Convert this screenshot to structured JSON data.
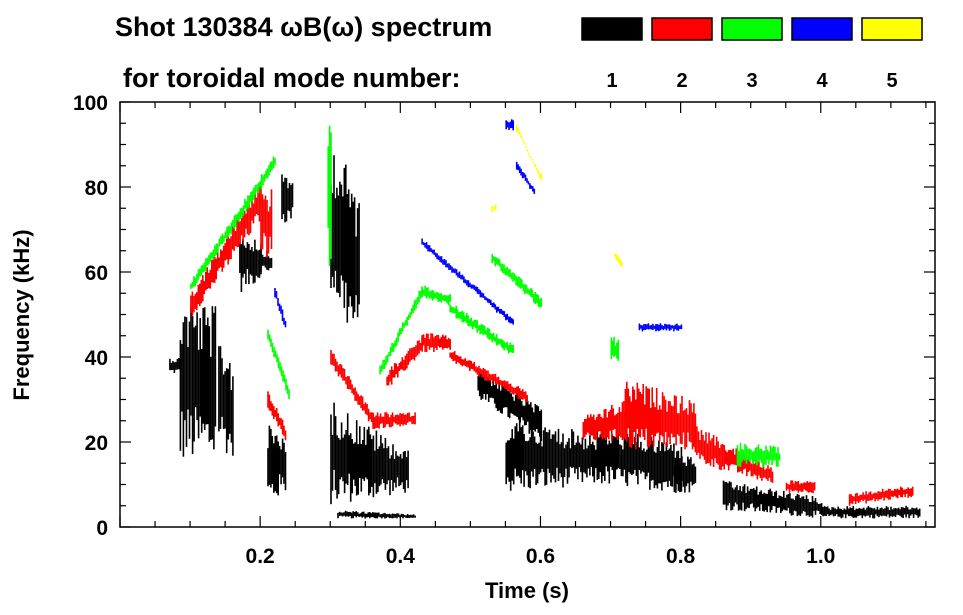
{
  "chart_data": {
    "type": "heatmap",
    "title": "Shot 130384 ωB(ω) spectrum",
    "legend_title": "for toroidal mode number:",
    "legend_placement": "top-right",
    "xlabel": "Time (s)",
    "ylabel": "Frequency (kHz)",
    "xlim": [
      0,
      1.163
    ],
    "ylim": [
      0,
      100
    ],
    "xticks": [
      0.2,
      0.4,
      0.6,
      0.8,
      1.0
    ],
    "xtick_labels": [
      "0.2",
      "0.4",
      "0.6",
      "0.8",
      "1.0"
    ],
    "yticks": [
      0,
      20,
      40,
      60,
      80,
      100
    ],
    "ytick_labels": [
      "0",
      "20",
      "40",
      "60",
      "80",
      "100"
    ],
    "grid": false,
    "modes": [
      {
        "n": "1",
        "color": "#000000",
        "regions": [
          {
            "t": [
              0.07,
              0.085
            ],
            "f0": [
              36,
              40
            ],
            "f1": [
              36,
              40
            ]
          },
          {
            "t": [
              0.085,
              0.135
            ],
            "f0": [
              15,
              55
            ],
            "f1": [
              15,
              52
            ]
          },
          {
            "t": [
              0.14,
              0.16
            ],
            "f0": [
              20,
              45
            ],
            "f1": [
              15,
              40
            ]
          },
          {
            "t": [
              0.17,
              0.2
            ],
            "f0": [
              55,
              70
            ],
            "f1": [
              58,
              68
            ]
          },
          {
            "t": [
              0.2,
              0.215
            ],
            "f0": [
              60,
              66
            ],
            "f1": [
              60,
              64
            ]
          },
          {
            "t": [
              0.21,
              0.235
            ],
            "f0": [
              5,
              25
            ],
            "f1": [
              8,
              22
            ]
          },
          {
            "t": [
              0.23,
              0.245
            ],
            "f0": [
              71,
              83
            ],
            "f1": [
              72,
              82
            ]
          },
          {
            "t": [
              0.3,
              0.34
            ],
            "f0": [
              55,
              92
            ],
            "f1": [
              40,
              80
            ]
          },
          {
            "t": [
              0.3,
              0.41
            ],
            "f0": [
              5,
              30
            ],
            "f1": [
              8,
              18
            ]
          },
          {
            "t": [
              0.31,
              0.42
            ],
            "f0": [
              2,
              4
            ],
            "f1": [
              2,
              3
            ]
          },
          {
            "t": [
              0.51,
              0.6
            ],
            "f0": [
              30,
              38
            ],
            "f1": [
              20,
              28
            ]
          },
          {
            "t": [
              0.55,
              0.68
            ],
            "f0": [
              8,
              26
            ],
            "f1": [
              10,
              22
            ]
          },
          {
            "t": [
              0.68,
              0.8
            ],
            "f0": [
              10,
              24
            ],
            "f1": [
              8,
              20
            ]
          },
          {
            "t": [
              0.79,
              0.82
            ],
            "f0": [
              8,
              17
            ],
            "f1": [
              8,
              17
            ]
          },
          {
            "t": [
              0.86,
              1.0
            ],
            "f0": [
              4,
              11
            ],
            "f1": [
              2,
              7
            ]
          },
          {
            "t": [
              1.0,
              1.14
            ],
            "f0": [
              2,
              5
            ],
            "f1": [
              2,
              5
            ]
          }
        ]
      },
      {
        "n": "2",
        "color": "#ff0000",
        "regions": [
          {
            "t": [
              0.1,
              0.2
            ],
            "f0": [
              49,
              55
            ],
            "f1": [
              72,
              82
            ]
          },
          {
            "t": [
              0.2,
              0.215
            ],
            "f0": [
              65,
              80
            ],
            "f1": [
              62,
              80
            ]
          },
          {
            "t": [
              0.21,
              0.235
            ],
            "f0": [
              28,
              32
            ],
            "f1": [
              20,
              24
            ]
          },
          {
            "t": [
              0.3,
              0.36
            ],
            "f0": [
              38,
              42
            ],
            "f1": [
              23,
              27
            ]
          },
          {
            "t": [
              0.36,
              0.42
            ],
            "f0": [
              23,
              27
            ],
            "f1": [
              24,
              27
            ]
          },
          {
            "t": [
              0.38,
              0.43
            ],
            "f0": [
              32,
              37
            ],
            "f1": [
              41,
              45
            ]
          },
          {
            "t": [
              0.43,
              0.47
            ],
            "f0": [
              41,
              46
            ],
            "f1": [
              41,
              45
            ]
          },
          {
            "t": [
              0.47,
              0.58
            ],
            "f0": [
              39,
              42
            ],
            "f1": [
              29,
              32
            ]
          },
          {
            "t": [
              0.66,
              0.72
            ],
            "f0": [
              20,
              26
            ],
            "f1": [
              20,
              30
            ]
          },
          {
            "t": [
              0.72,
              0.82
            ],
            "f0": [
              18,
              35
            ],
            "f1": [
              18,
              30
            ]
          },
          {
            "t": [
              0.82,
              0.93
            ],
            "f0": [
              15,
              24
            ],
            "f1": [
              10,
              14
            ]
          },
          {
            "t": [
              0.95,
              0.99
            ],
            "f0": [
              8,
              11
            ],
            "f1": [
              8,
              11
            ]
          },
          {
            "t": [
              1.04,
              1.13
            ],
            "f0": [
              5,
              8
            ],
            "f1": [
              7,
              10
            ]
          }
        ]
      },
      {
        "n": "3",
        "color": "#00ff00",
        "regions": [
          {
            "t": [
              0.1,
              0.22
            ],
            "f0": [
              55,
              58
            ],
            "f1": [
              84,
              88
            ]
          },
          {
            "t": [
              0.21,
              0.24
            ],
            "f0": [
              44,
              47
            ],
            "f1": [
              30,
              33
            ]
          },
          {
            "t": [
              0.296,
              0.3
            ],
            "f0": [
              60,
              96
            ],
            "f1": [
              60,
              96
            ]
          },
          {
            "t": [
              0.37,
              0.43
            ],
            "f0": [
              35,
              38
            ],
            "f1": [
              54,
              57
            ]
          },
          {
            "t": [
              0.43,
              0.47
            ],
            "f0": [
              54,
              57
            ],
            "f1": [
              52,
              55
            ]
          },
          {
            "t": [
              0.47,
              0.56
            ],
            "f0": [
              50,
              53
            ],
            "f1": [
              40,
              43
            ]
          },
          {
            "t": [
              0.53,
              0.6
            ],
            "f0": [
              62,
              65
            ],
            "f1": [
              51,
              54
            ]
          },
          {
            "t": [
              0.7,
              0.71
            ],
            "f0": [
              38,
              45
            ],
            "f1": [
              38,
              45
            ]
          },
          {
            "t": [
              0.88,
              0.94
            ],
            "f0": [
              14,
              20
            ],
            "f1": [
              14,
              19
            ]
          }
        ]
      },
      {
        "n": "4",
        "color": "#0000ff",
        "regions": [
          {
            "t": [
              0.22,
              0.235
            ],
            "f0": [
              54,
              57
            ],
            "f1": [
              46,
              49
            ]
          },
          {
            "t": [
              0.43,
              0.56
            ],
            "f0": [
              66,
              68
            ],
            "f1": [
              47,
              49
            ]
          },
          {
            "t": [
              0.55,
              0.56
            ],
            "f0": [
              93,
              96
            ],
            "f1": [
              93,
              96
            ]
          },
          {
            "t": [
              0.565,
              0.59
            ],
            "f0": [
              84,
              86
            ],
            "f1": [
              78,
              80
            ]
          },
          {
            "t": [
              0.74,
              0.8
            ],
            "f0": [
              46,
              48
            ],
            "f1": [
              46,
              48
            ]
          }
        ]
      },
      {
        "n": "5",
        "color": "#ffff00",
        "regions": [
          {
            "t": [
              0.53,
              0.535
            ],
            "f0": [
              74,
              76
            ],
            "f1": [
              74,
              76
            ]
          },
          {
            "t": [
              0.565,
              0.6
            ],
            "f0": [
              95,
              93
            ],
            "f1": [
              81,
              83
            ]
          },
          {
            "t": [
              0.705,
              0.715
            ],
            "f0": [
              63,
              65
            ],
            "f1": [
              61,
              63
            ]
          }
        ]
      }
    ]
  }
}
